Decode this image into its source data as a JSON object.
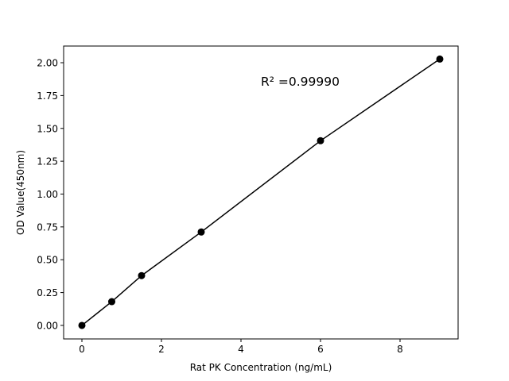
{
  "chart_data": {
    "type": "line",
    "title": "",
    "xlabel": "Rat PK Concentration (ng/mL)",
    "ylabel": "OD Value(450nm)",
    "xlim": [
      -0.46,
      9.46
    ],
    "ylim": [
      -0.103,
      2.127
    ],
    "x_ticks": [
      0,
      2,
      4,
      6,
      8
    ],
    "x_tick_labels": [
      "0",
      "2",
      "4",
      "6",
      "8"
    ],
    "y_ticks": [
      0,
      0.25,
      0.5,
      0.75,
      1.0,
      1.25,
      1.5,
      1.75,
      2.0
    ],
    "y_tick_labels": [
      "0.00",
      "0.25",
      "0.50",
      "0.75",
      "1.00",
      "1.25",
      "1.50",
      "1.75",
      "2.00"
    ],
    "grid": false,
    "series": [
      {
        "x": [
          0,
          0.75,
          1.5,
          3,
          6,
          9
        ],
        "y": [
          0.0,
          0.181,
          0.379,
          0.711,
          1.406,
          2.028
        ],
        "color": "#000000",
        "marker": "circle"
      }
    ],
    "annotation": "R² =0.99990"
  }
}
